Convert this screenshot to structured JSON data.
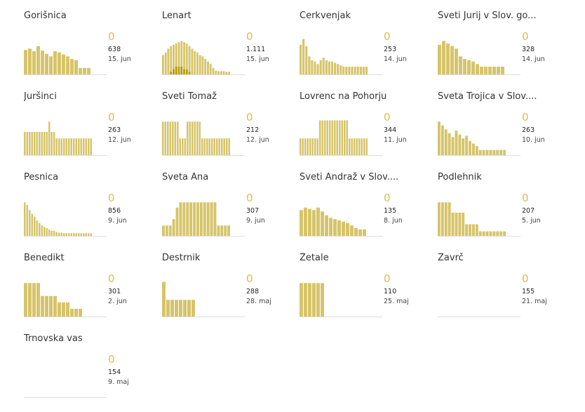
{
  "colors": {
    "bar": "#d6c46a",
    "highlight": "#b59a10",
    "baseline": "#dddddd",
    "current": "#d7bf4e"
  },
  "chart_data": [
    {
      "type": "bar",
      "title": "Gorišnica",
      "current": "0",
      "total": "638",
      "date": "15. jun",
      "values": [
        38,
        40,
        36,
        44,
        37,
        32,
        28,
        36,
        34,
        31,
        28,
        24,
        22,
        10,
        10,
        10
      ],
      "highlight": [
        0,
        0,
        0,
        0,
        0,
        0,
        0,
        0,
        0,
        0,
        0,
        0,
        0,
        0,
        0,
        0
      ]
    },
    {
      "type": "bar",
      "title": "Lenart",
      "current": "0",
      "total": "1.111",
      "date": "15. jun",
      "values": [
        30,
        34,
        40,
        44,
        46,
        48,
        50,
        52,
        50,
        48,
        44,
        40,
        36,
        34,
        30,
        28,
        24,
        20,
        16,
        10,
        6,
        5,
        5,
        5,
        4,
        4
      ],
      "highlight": [
        0,
        0,
        0,
        1,
        2,
        3,
        3,
        3,
        2,
        2,
        1,
        0,
        0,
        0,
        0,
        0,
        0,
        0,
        0,
        0,
        0,
        0,
        0,
        0,
        0,
        0
      ]
    },
    {
      "type": "bar",
      "title": "Cerkvenjak",
      "current": "0",
      "total": "253",
      "date": "14. jun",
      "values": [
        46,
        55,
        44,
        28,
        22,
        20,
        16,
        22,
        26,
        22,
        20,
        20,
        18,
        16,
        14,
        12,
        12,
        12,
        12,
        12,
        12,
        12,
        12,
        12
      ],
      "highlight": [
        0,
        0,
        0,
        0,
        0,
        0,
        0,
        0,
        0,
        0,
        0,
        0,
        0,
        0,
        0,
        0,
        0,
        0,
        0,
        0,
        0,
        0,
        0,
        0
      ]
    },
    {
      "type": "bar",
      "title": "Sveti Jurij v Slov. go...",
      "current": "0",
      "total": "328",
      "date": "14. jun",
      "values": [
        46,
        52,
        48,
        44,
        40,
        28,
        24,
        22,
        20,
        16,
        12,
        12,
        12,
        12,
        12,
        12
      ],
      "highlight": [
        0,
        0,
        0,
        0,
        0,
        0,
        0,
        0,
        0,
        0,
        0,
        0,
        0,
        0,
        0,
        0
      ]
    },
    {
      "type": "bar",
      "title": "Juršinci",
      "current": "0",
      "total": "263",
      "date": "12. jun",
      "values": [
        36,
        36,
        36,
        36,
        36,
        36,
        36,
        36,
        36,
        36,
        52,
        36,
        36,
        26,
        26,
        26,
        26,
        26,
        26,
        26,
        26,
        26,
        26,
        26,
        26,
        26,
        26,
        26
      ],
      "highlight": [
        0,
        0,
        0,
        0,
        0,
        0,
        0,
        0,
        0,
        0,
        0,
        0,
        0,
        0,
        0,
        0,
        0,
        0,
        0,
        0,
        0,
        0,
        0,
        0,
        0,
        0,
        0,
        0
      ]
    },
    {
      "type": "bar",
      "title": "Sveti Tomaž",
      "current": "0",
      "total": "212",
      "date": "12. jun",
      "values": [
        52,
        52,
        52,
        52,
        52,
        52,
        52,
        26,
        26,
        26,
        52,
        52,
        52,
        52,
        52,
        52,
        26,
        26,
        26,
        26,
        26,
        26,
        26,
        26,
        26,
        26,
        26,
        26
      ],
      "highlight": [
        0,
        0,
        0,
        0,
        0,
        0,
        0,
        0,
        0,
        0,
        0,
        0,
        0,
        0,
        0,
        0,
        0,
        0,
        0,
        0,
        0,
        0,
        0,
        0,
        0,
        0,
        0,
        0
      ]
    },
    {
      "type": "bar",
      "title": "Lovrenc na Pohorju",
      "current": "0",
      "total": "344",
      "date": "11. jun",
      "values": [
        26,
        26,
        26,
        26,
        26,
        26,
        26,
        26,
        54,
        54,
        54,
        54,
        54,
        54,
        54,
        54,
        54,
        54,
        54,
        54,
        26,
        26,
        26,
        26,
        26,
        26,
        26,
        26
      ],
      "highlight": [
        0,
        0,
        0,
        0,
        0,
        0,
        0,
        0,
        0,
        0,
        0,
        0,
        0,
        0,
        0,
        0,
        0,
        0,
        0,
        0,
        0,
        0,
        0,
        0,
        0,
        0,
        0,
        0
      ]
    },
    {
      "type": "bar",
      "title": "Sveta Trojica v Slov....",
      "current": "0",
      "total": "263",
      "date": "10. jun",
      "values": [
        52,
        46,
        40,
        34,
        28,
        38,
        32,
        26,
        30,
        22,
        18,
        14,
        8,
        8,
        8,
        8,
        8,
        8,
        8,
        8
      ],
      "highlight": [
        0,
        0,
        0,
        0,
        0,
        0,
        0,
        0,
        0,
        0,
        0,
        0,
        0,
        0,
        0,
        0,
        0,
        0,
        0,
        0
      ]
    },
    {
      "type": "bar",
      "title": "Pesnica",
      "current": "0",
      "total": "856",
      "date": "9. jun",
      "values": [
        52,
        48,
        40,
        34,
        30,
        24,
        20,
        16,
        14,
        12,
        10,
        8,
        8,
        6,
        5,
        5,
        4,
        4,
        4,
        4,
        4,
        4,
        4,
        4,
        4,
        4,
        4,
        4
      ],
      "highlight": [
        0,
        0,
        0,
        0,
        0,
        0,
        0,
        0,
        0,
        0,
        0,
        0,
        0,
        0,
        0,
        0,
        0,
        0,
        0,
        0,
        0,
        0,
        0,
        0,
        0,
        0,
        0,
        0
      ]
    },
    {
      "type": "bar",
      "title": "Sveta Ana",
      "current": "0",
      "total": "307",
      "date": "9. jun",
      "values": [
        16,
        16,
        16,
        26,
        44,
        52,
        52,
        52,
        52,
        52,
        52,
        52,
        52,
        52,
        52,
        52,
        16,
        16,
        16,
        16
      ],
      "highlight": [
        0,
        0,
        0,
        0,
        0,
        0,
        0,
        0,
        0,
        0,
        0,
        0,
        0,
        0,
        0,
        0,
        0,
        0,
        0,
        0
      ]
    },
    {
      "type": "bar",
      "title": "Sveti Andraž v Slov....",
      "current": "0",
      "total": "135",
      "date": "8. jun",
      "values": [
        40,
        44,
        42,
        40,
        44,
        38,
        32,
        28,
        26,
        24,
        22,
        20,
        16,
        12,
        10,
        10
      ],
      "highlight": [
        0,
        0,
        0,
        0,
        0,
        0,
        0,
        0,
        0,
        0,
        0,
        0,
        0,
        0,
        0,
        0
      ]
    },
    {
      "type": "bar",
      "title": "Podlehnik",
      "current": "0",
      "total": "207",
      "date": "5. jun",
      "values": [
        52,
        52,
        52,
        52,
        36,
        36,
        36,
        36,
        18,
        18,
        18,
        18,
        7,
        7,
        7,
        7,
        7,
        7,
        7,
        7
      ],
      "highlight": [
        0,
        0,
        0,
        0,
        0,
        0,
        0,
        0,
        0,
        0,
        0,
        0,
        0,
        0,
        0,
        0,
        0,
        0,
        0,
        0
      ]
    },
    {
      "type": "bar",
      "title": "Benedikt",
      "current": "0",
      "total": "301",
      "date": "2. jun",
      "values": [
        52,
        52,
        52,
        52,
        32,
        32,
        32,
        32,
        22,
        22,
        22,
        12,
        12,
        12
      ],
      "highlight": [
        0,
        0,
        0,
        0,
        0,
        0,
        0,
        0,
        0,
        0,
        0,
        0,
        0,
        0
      ]
    },
    {
      "type": "bar",
      "title": "Destrnik",
      "current": "0",
      "total": "288",
      "date": "28. maj",
      "values": [
        54,
        26,
        26,
        26,
        26,
        26,
        26,
        26
      ],
      "highlight": [
        0,
        0,
        0,
        0,
        0,
        0,
        0,
        0
      ]
    },
    {
      "type": "bar",
      "title": "Žetale",
      "current": "0",
      "total": "110",
      "date": "25. maj",
      "values": [
        52,
        52,
        52,
        52,
        52,
        52
      ],
      "highlight": [
        0,
        0,
        0,
        0,
        0,
        0
      ]
    },
    {
      "type": "bar",
      "title": "Zavrč",
      "current": "0",
      "total": "155",
      "date": "21. maj",
      "values": [],
      "highlight": []
    },
    {
      "type": "bar",
      "title": "Trnovska vas",
      "current": "0",
      "total": "154",
      "date": "9. maj",
      "values": [],
      "highlight": []
    }
  ]
}
